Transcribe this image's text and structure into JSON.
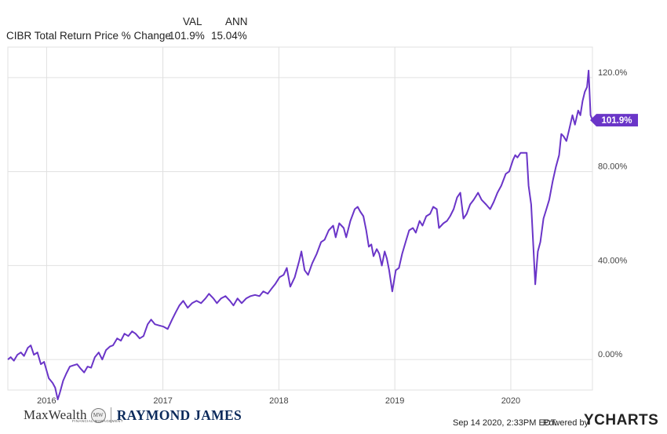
{
  "header": {
    "col_val": "VAL",
    "col_ann": "ANN",
    "series_label": "CIBR Total Return Price % Change",
    "val": "101.9%",
    "ann": "15.04%"
  },
  "footer": {
    "timestamp": "Sep 14 2020, 2:33PM EDT.",
    "powered_by": "Powered by",
    "brand": "YCHARTS",
    "logo_maxwealth": "MaxWealth",
    "logo_maxwealth_sub": "FINANCIAL MANAGEMENT",
    "logo_seal": "MW",
    "logo_rj": "RAYMOND JAMES"
  },
  "colors": {
    "line": "#6a35c8",
    "badge_bg": "#6a35c8",
    "grid": "#e0e0e0",
    "axis_text": "#444444"
  },
  "chart_data": {
    "type": "line",
    "title": "",
    "xlabel": "",
    "ylabel": "",
    "grid": true,
    "y_format": "percent",
    "ylim": [
      -13,
      133
    ],
    "xlim": [
      "2015-09-01",
      "2020-09-14"
    ],
    "x_ticks": [
      {
        "label": "2016",
        "date": "2016-01-01"
      },
      {
        "label": "2017",
        "date": "2017-01-01"
      },
      {
        "label": "2018",
        "date": "2018-01-01"
      },
      {
        "label": "2019",
        "date": "2019-01-01"
      },
      {
        "label": "2020",
        "date": "2020-01-01"
      }
    ],
    "y_ticks": [
      {
        "label": "0.00%",
        "value": 0
      },
      {
        "label": "40.00%",
        "value": 40
      },
      {
        "label": "80.00%",
        "value": 80
      },
      {
        "label": "120.0%",
        "value": 120
      }
    ],
    "end_label": "101.9%",
    "series": [
      {
        "name": "CIBR Total Return Price % Change",
        "points": [
          [
            "2015-09-01",
            0
          ],
          [
            "2015-09-10",
            1
          ],
          [
            "2015-09-20",
            -0.5
          ],
          [
            "2015-10-01",
            2
          ],
          [
            "2015-10-12",
            3
          ],
          [
            "2015-10-22",
            1.5
          ],
          [
            "2015-11-03",
            5
          ],
          [
            "2015-11-12",
            6
          ],
          [
            "2015-11-22",
            2
          ],
          [
            "2015-12-03",
            3
          ],
          [
            "2015-12-14",
            -2
          ],
          [
            "2015-12-24",
            -1
          ],
          [
            "2016-01-08",
            -8
          ],
          [
            "2016-01-20",
            -10
          ],
          [
            "2016-01-28",
            -12
          ],
          [
            "2016-02-05",
            -17
          ],
          [
            "2016-02-12",
            -14
          ],
          [
            "2016-02-22",
            -9
          ],
          [
            "2016-03-03",
            -6
          ],
          [
            "2016-03-14",
            -3
          ],
          [
            "2016-03-25",
            -2.5
          ],
          [
            "2016-04-06",
            -2
          ],
          [
            "2016-04-18",
            -4
          ],
          [
            "2016-04-28",
            -5.5
          ],
          [
            "2016-05-09",
            -3
          ],
          [
            "2016-05-20",
            -3.5
          ],
          [
            "2016-06-01",
            1
          ],
          [
            "2016-06-13",
            3
          ],
          [
            "2016-06-24",
            0
          ],
          [
            "2016-07-06",
            4
          ],
          [
            "2016-07-18",
            5.5
          ],
          [
            "2016-07-28",
            6
          ],
          [
            "2016-08-10",
            9
          ],
          [
            "2016-08-22",
            8
          ],
          [
            "2016-09-02",
            11
          ],
          [
            "2016-09-14",
            10
          ],
          [
            "2016-09-26",
            12
          ],
          [
            "2016-10-07",
            11
          ],
          [
            "2016-10-20",
            9
          ],
          [
            "2016-11-01",
            10
          ],
          [
            "2016-11-14",
            15
          ],
          [
            "2016-11-25",
            17
          ],
          [
            "2016-12-07",
            15
          ],
          [
            "2016-12-20",
            14.5
          ],
          [
            "2017-01-03",
            14
          ],
          [
            "2017-01-16",
            13
          ],
          [
            "2017-01-30",
            17
          ],
          [
            "2017-02-10",
            20
          ],
          [
            "2017-02-22",
            23
          ],
          [
            "2017-03-06",
            25
          ],
          [
            "2017-03-20",
            22
          ],
          [
            "2017-04-03",
            24
          ],
          [
            "2017-04-17",
            25
          ],
          [
            "2017-05-01",
            24
          ],
          [
            "2017-05-15",
            26
          ],
          [
            "2017-05-26",
            28
          ],
          [
            "2017-06-09",
            26
          ],
          [
            "2017-06-20",
            24
          ],
          [
            "2017-07-03",
            26
          ],
          [
            "2017-07-17",
            27
          ],
          [
            "2017-07-31",
            25
          ],
          [
            "2017-08-11",
            23
          ],
          [
            "2017-08-24",
            26
          ],
          [
            "2017-09-06",
            24
          ],
          [
            "2017-09-20",
            26
          ],
          [
            "2017-10-04",
            27
          ],
          [
            "2017-10-18",
            27.5
          ],
          [
            "2017-11-01",
            27
          ],
          [
            "2017-11-13",
            29
          ],
          [
            "2017-11-27",
            28
          ],
          [
            "2017-12-08",
            30
          ],
          [
            "2017-12-20",
            32
          ],
          [
            "2018-01-03",
            35
          ],
          [
            "2018-01-16",
            36
          ],
          [
            "2018-01-26",
            39
          ],
          [
            "2018-02-06",
            31
          ],
          [
            "2018-02-20",
            35
          ],
          [
            "2018-03-06",
            42
          ],
          [
            "2018-03-13",
            46
          ],
          [
            "2018-03-23",
            38
          ],
          [
            "2018-04-03",
            36
          ],
          [
            "2018-04-16",
            41
          ],
          [
            "2018-04-30",
            45
          ],
          [
            "2018-05-14",
            50
          ],
          [
            "2018-05-25",
            51
          ],
          [
            "2018-06-07",
            55
          ],
          [
            "2018-06-21",
            57
          ],
          [
            "2018-06-29",
            52
          ],
          [
            "2018-07-10",
            58
          ],
          [
            "2018-07-24",
            56
          ],
          [
            "2018-08-01",
            52
          ],
          [
            "2018-08-14",
            59
          ],
          [
            "2018-08-28",
            64
          ],
          [
            "2018-09-06",
            65
          ],
          [
            "2018-09-14",
            63
          ],
          [
            "2018-09-24",
            61
          ],
          [
            "2018-10-03",
            55
          ],
          [
            "2018-10-11",
            48
          ],
          [
            "2018-10-19",
            49
          ],
          [
            "2018-10-26",
            44
          ],
          [
            "2018-11-05",
            47
          ],
          [
            "2018-11-13",
            45
          ],
          [
            "2018-11-21",
            40
          ],
          [
            "2018-11-30",
            46
          ],
          [
            "2018-12-07",
            43
          ],
          [
            "2018-12-14",
            38
          ],
          [
            "2018-12-24",
            29
          ],
          [
            "2019-01-04",
            38
          ],
          [
            "2019-01-14",
            39
          ],
          [
            "2019-01-24",
            45
          ],
          [
            "2019-02-04",
            50
          ],
          [
            "2019-02-15",
            55
          ],
          [
            "2019-02-27",
            56
          ],
          [
            "2019-03-08",
            54
          ],
          [
            "2019-03-20",
            59
          ],
          [
            "2019-03-29",
            57
          ],
          [
            "2019-04-10",
            61
          ],
          [
            "2019-04-22",
            62
          ],
          [
            "2019-05-02",
            65
          ],
          [
            "2019-05-13",
            64
          ],
          [
            "2019-05-20",
            56
          ],
          [
            "2019-06-03",
            58
          ],
          [
            "2019-06-14",
            59
          ],
          [
            "2019-06-24",
            61
          ],
          [
            "2019-07-05",
            64
          ],
          [
            "2019-07-16",
            69
          ],
          [
            "2019-07-26",
            71
          ],
          [
            "2019-08-05",
            60
          ],
          [
            "2019-08-15",
            62
          ],
          [
            "2019-08-26",
            66
          ],
          [
            "2019-09-06",
            68
          ],
          [
            "2019-09-20",
            71
          ],
          [
            "2019-10-01",
            68
          ],
          [
            "2019-10-15",
            66
          ],
          [
            "2019-10-28",
            64
          ],
          [
            "2019-11-08",
            67
          ],
          [
            "2019-11-20",
            71
          ],
          [
            "2019-12-02",
            74
          ],
          [
            "2019-12-16",
            79
          ],
          [
            "2019-12-27",
            80
          ],
          [
            "2020-01-08",
            85
          ],
          [
            "2020-01-15",
            87
          ],
          [
            "2020-01-22",
            86
          ],
          [
            "2020-02-01",
            88
          ],
          [
            "2020-02-10",
            88
          ],
          [
            "2020-02-20",
            88
          ],
          [
            "2020-02-26",
            74
          ],
          [
            "2020-03-05",
            66
          ],
          [
            "2020-03-12",
            48
          ],
          [
            "2020-03-18",
            32
          ],
          [
            "2020-03-26",
            46
          ],
          [
            "2020-04-03",
            50
          ],
          [
            "2020-04-13",
            60
          ],
          [
            "2020-04-22",
            64
          ],
          [
            "2020-05-01",
            68
          ],
          [
            "2020-05-12",
            76
          ],
          [
            "2020-05-22",
            82
          ],
          [
            "2020-06-01",
            87
          ],
          [
            "2020-06-08",
            96
          ],
          [
            "2020-06-15",
            95
          ],
          [
            "2020-06-24",
            93
          ],
          [
            "2020-07-03",
            98
          ],
          [
            "2020-07-13",
            104
          ],
          [
            "2020-07-21",
            100
          ],
          [
            "2020-07-31",
            106
          ],
          [
            "2020-08-07",
            104
          ],
          [
            "2020-08-14",
            110
          ],
          [
            "2020-08-21",
            114
          ],
          [
            "2020-08-28",
            116
          ],
          [
            "2020-09-02",
            123
          ],
          [
            "2020-09-08",
            104
          ],
          [
            "2020-09-14",
            101.9
          ]
        ]
      }
    ]
  }
}
